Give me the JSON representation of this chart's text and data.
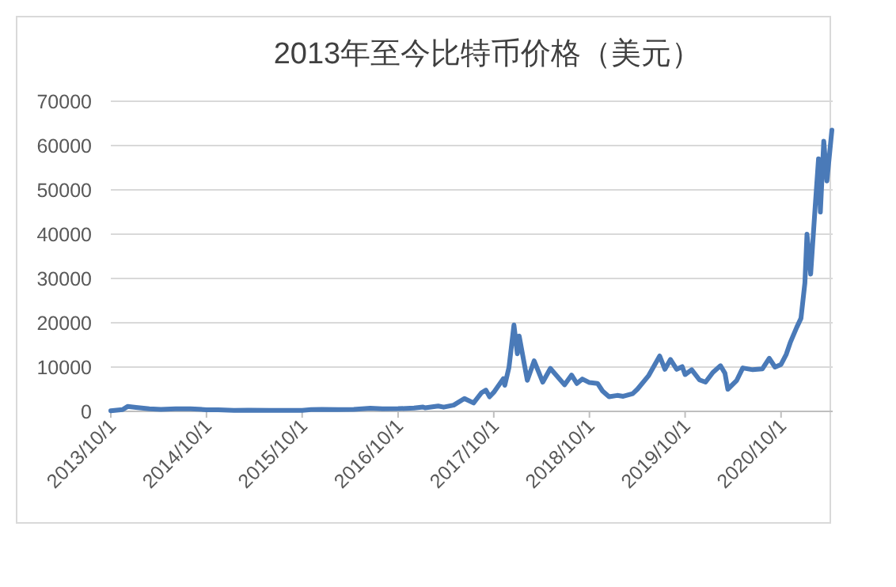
{
  "chart_data": {
    "type": "line",
    "title": "2013年至今比特币价格（美元）",
    "x": [
      "2013-10-01",
      "2013-11-15",
      "2013-12-04",
      "2014-01-05",
      "2014-02-25",
      "2014-04-10",
      "2014-06-05",
      "2014-08-01",
      "2014-10-01",
      "2014-11-15",
      "2015-01-14",
      "2015-03-10",
      "2015-06-01",
      "2015-08-15",
      "2015-10-01",
      "2015-11-04",
      "2015-12-15",
      "2016-02-15",
      "2016-04-15",
      "2016-06-17",
      "2016-08-02",
      "2016-10-01",
      "2016-12-01",
      "2017-01-04",
      "2017-01-12",
      "2017-03-03",
      "2017-03-24",
      "2017-05-01",
      "2017-06-11",
      "2017-07-16",
      "2017-08-15",
      "2017-09-01",
      "2017-09-15",
      "2017-10-01",
      "2017-11-07",
      "2017-11-12",
      "2017-11-28",
      "2017-12-17",
      "2017-12-30",
      "2018-01-06",
      "2018-02-06",
      "2018-03-04",
      "2018-04-06",
      "2018-05-05",
      "2018-06-28",
      "2018-07-25",
      "2018-08-14",
      "2018-09-04",
      "2018-10-01",
      "2018-11-01",
      "2018-11-20",
      "2018-12-15",
      "2019-01-15",
      "2019-02-07",
      "2019-03-15",
      "2019-04-02",
      "2019-05-14",
      "2019-06-26",
      "2019-07-16",
      "2019-08-06",
      "2019-08-30",
      "2019-09-20",
      "2019-10-01",
      "2019-10-26",
      "2019-11-25",
      "2019-12-18",
      "2020-01-15",
      "2020-02-13",
      "2020-03-01",
      "2020-03-12",
      "2020-04-15",
      "2020-05-08",
      "2020-06-15",
      "2020-07-22",
      "2020-08-17",
      "2020-09-08",
      "2020-10-01",
      "2020-10-21",
      "2020-11-05",
      "2020-11-30",
      "2020-12-16",
      "2020-12-31",
      "2021-01-08",
      "2021-01-22",
      "2021-02-08",
      "2021-02-21",
      "2021-02-28",
      "2021-03-13",
      "2021-03-25",
      "2021-04-13"
    ],
    "series": [
      {
        "color": "#4a7ab8",
        "values": [
          130,
          400,
          1100,
          900,
          600,
          450,
          600,
          580,
          380,
          350,
          220,
          280,
          230,
          230,
          240,
          400,
          440,
          400,
          430,
          700,
          570,
          610,
          750,
          1000,
          800,
          1200,
          950,
          1400,
          2900,
          1900,
          4200,
          4800,
          3300,
          4300,
          7400,
          5900,
          9900,
          19500,
          13000,
          17000,
          7000,
          11400,
          6600,
          9700,
          6000,
          8200,
          6300,
          7300,
          6500,
          6300,
          4600,
          3300,
          3600,
          3400,
          4000,
          5000,
          8000,
          12500,
          9500,
          11700,
          9500,
          10100,
          8300,
          9400,
          7100,
          6600,
          8800,
          10300,
          8600,
          5000,
          7000,
          9800,
          9400,
          9600,
          12000,
          10000,
          10600,
          12900,
          15500,
          19000,
          21000,
          29000,
          40000,
          31000,
          46000,
          57000,
          45000,
          61000,
          52000,
          63500
        ]
      }
    ],
    "xlim": [
      "2013-10-01",
      "2021-04-16"
    ],
    "xticks": [
      {
        "value": "2013-10-01",
        "label": "2013/10/1"
      },
      {
        "value": "2014-10-01",
        "label": "2014/10/1"
      },
      {
        "value": "2015-10-01",
        "label": "2015/10/1"
      },
      {
        "value": "2016-10-01",
        "label": "2016/10/1"
      },
      {
        "value": "2017-10-01",
        "label": "2017/10/1"
      },
      {
        "value": "2018-10-01",
        "label": "2018/10/1"
      },
      {
        "value": "2019-10-01",
        "label": "2019/10/1"
      },
      {
        "value": "2020-10-01",
        "label": "2020/10/1"
      }
    ],
    "ylim": [
      0,
      70000
    ],
    "yticks": [
      0,
      10000,
      20000,
      30000,
      40000,
      50000,
      60000,
      70000
    ],
    "grid": "y"
  }
}
